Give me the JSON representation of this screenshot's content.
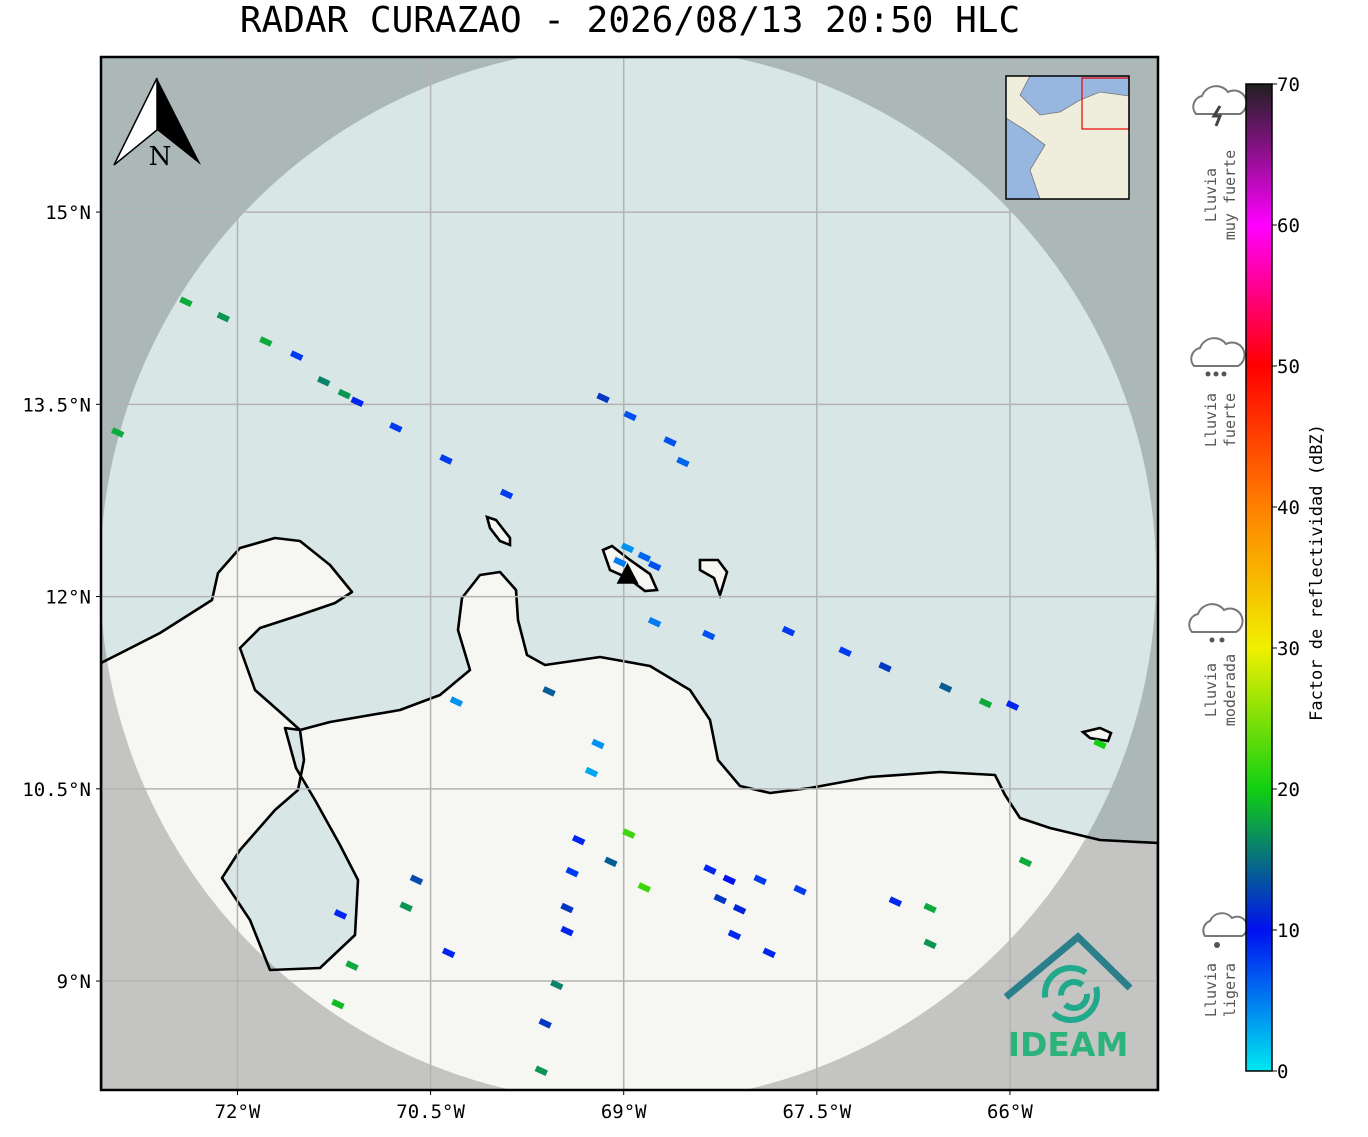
{
  "title": "RADAR CURAZAO - 2026/08/13 20:50 HLC",
  "map": {
    "xlim": [
      -73.06,
      -64.85
    ],
    "ylim": [
      8.15,
      16.21
    ],
    "xticks": [
      {
        "value": -72,
        "label": "72°W"
      },
      {
        "value": -70.5,
        "label": "70.5°W"
      },
      {
        "value": -69,
        "label": "69°W"
      },
      {
        "value": -67.5,
        "label": "67.5°W"
      },
      {
        "value": -66,
        "label": "66°W"
      }
    ],
    "yticks": [
      {
        "value": 9,
        "label": "9°N"
      },
      {
        "value": 10.5,
        "label": "10.5°N"
      },
      {
        "value": 12,
        "label": "12°N"
      },
      {
        "value": 13.5,
        "label": "13.5°N"
      },
      {
        "value": 15,
        "label": "15°N"
      }
    ],
    "grid": true,
    "radar_site": {
      "lon": -68.97,
      "lat": 12.17
    },
    "echoes": [
      {
        "lon": -72.4,
        "lat": 14.3,
        "dbz": 18
      },
      {
        "lon": -72.11,
        "lat": 14.18,
        "dbz": 17
      },
      {
        "lon": -71.78,
        "lat": 13.99,
        "dbz": 18
      },
      {
        "lon": -71.54,
        "lat": 13.88,
        "dbz": 8
      },
      {
        "lon": -71.33,
        "lat": 13.68,
        "dbz": 16
      },
      {
        "lon": -71.17,
        "lat": 13.58,
        "dbz": 17
      },
      {
        "lon": -71.07,
        "lat": 13.52,
        "dbz": 9
      },
      {
        "lon": -70.77,
        "lat": 13.32,
        "dbz": 8
      },
      {
        "lon": -70.38,
        "lat": 13.07,
        "dbz": 8
      },
      {
        "lon": -69.91,
        "lat": 12.8,
        "dbz": 8
      },
      {
        "lon": -72.93,
        "lat": 13.28,
        "dbz": 18
      },
      {
        "lon": -69.16,
        "lat": 13.55,
        "dbz": 12
      },
      {
        "lon": -68.95,
        "lat": 13.41,
        "dbz": 7
      },
      {
        "lon": -68.64,
        "lat": 13.21,
        "dbz": 7
      },
      {
        "lon": -68.54,
        "lat": 13.05,
        "dbz": 6
      },
      {
        "lon": -68.97,
        "lat": 12.38,
        "dbz": 4
      },
      {
        "lon": -68.84,
        "lat": 12.31,
        "dbz": 6
      },
      {
        "lon": -68.76,
        "lat": 12.24,
        "dbz": 7
      },
      {
        "lon": -69.03,
        "lat": 12.27,
        "dbz": 5
      },
      {
        "lon": -68.76,
        "lat": 11.8,
        "dbz": 5
      },
      {
        "lon": -68.34,
        "lat": 11.7,
        "dbz": 7
      },
      {
        "lon": -67.72,
        "lat": 11.73,
        "dbz": 8
      },
      {
        "lon": -67.28,
        "lat": 11.57,
        "dbz": 8
      },
      {
        "lon": -66.97,
        "lat": 11.45,
        "dbz": 12
      },
      {
        "lon": -66.5,
        "lat": 11.29,
        "dbz": 14
      },
      {
        "lon": -66.19,
        "lat": 11.17,
        "dbz": 18
      },
      {
        "lon": -65.98,
        "lat": 11.15,
        "dbz": 9
      },
      {
        "lon": -65.3,
        "lat": 10.85,
        "dbz": 20
      },
      {
        "lon": -69.58,
        "lat": 11.26,
        "dbz": 14
      },
      {
        "lon": -70.3,
        "lat": 11.18,
        "dbz": 4
      },
      {
        "lon": -69.2,
        "lat": 10.85,
        "dbz": 4
      },
      {
        "lon": -69.25,
        "lat": 10.63,
        "dbz": 3
      },
      {
        "lon": -70.61,
        "lat": 9.79,
        "dbz": 13
      },
      {
        "lon": -69.35,
        "lat": 10.1,
        "dbz": 9
      },
      {
        "lon": -69.1,
        "lat": 9.93,
        "dbz": 14
      },
      {
        "lon": -68.96,
        "lat": 10.15,
        "dbz": 22
      },
      {
        "lon": -68.84,
        "lat": 9.73,
        "dbz": 22
      },
      {
        "lon": -69.4,
        "lat": 9.85,
        "dbz": 8
      },
      {
        "lon": -69.44,
        "lat": 9.57,
        "dbz": 12
      },
      {
        "lon": -69.44,
        "lat": 9.39,
        "dbz": 9
      },
      {
        "lon": -69.52,
        "lat": 8.97,
        "dbz": 16
      },
      {
        "lon": -69.61,
        "lat": 8.67,
        "dbz": 12
      },
      {
        "lon": -69.64,
        "lat": 8.3,
        "dbz": 17
      },
      {
        "lon": -71.11,
        "lat": 9.12,
        "dbz": 18
      },
      {
        "lon": -71.22,
        "lat": 8.82,
        "dbz": 19
      },
      {
        "lon": -66.62,
        "lat": 9.57,
        "dbz": 18
      },
      {
        "lon": -66.62,
        "lat": 9.29,
        "dbz": 17
      },
      {
        "lon": -66.89,
        "lat": 9.62,
        "dbz": 9
      },
      {
        "lon": -65.88,
        "lat": 9.93,
        "dbz": 18
      },
      {
        "lon": -68.18,
        "lat": 9.79,
        "dbz": 10
      },
      {
        "lon": -68.33,
        "lat": 9.87,
        "dbz": 9
      },
      {
        "lon": -68.1,
        "lat": 9.56,
        "dbz": 11
      },
      {
        "lon": -68.14,
        "lat": 9.36,
        "dbz": 9
      },
      {
        "lon": -68.25,
        "lat": 9.64,
        "dbz": 12
      },
      {
        "lon": -67.94,
        "lat": 9.79,
        "dbz": 8
      },
      {
        "lon": -67.63,
        "lat": 9.71,
        "dbz": 8
      },
      {
        "lon": -67.87,
        "lat": 9.22,
        "dbz": 9
      },
      {
        "lon": -70.36,
        "lat": 9.22,
        "dbz": 9
      },
      {
        "lon": -71.2,
        "lat": 9.52,
        "dbz": 9
      },
      {
        "lon": -70.69,
        "lat": 9.58,
        "dbz": 17
      }
    ]
  },
  "colorbar": {
    "label": "Factor de reflectividad (dBZ)",
    "lim": [
      0,
      70
    ],
    "ticks": [
      0,
      10,
      20,
      30,
      40,
      50,
      60,
      70
    ],
    "colors": [
      "#00e8f0",
      "#0010f0",
      "#10d010",
      "#f0f000",
      "#ff8000",
      "#ff0000",
      "#ff00ff",
      "#202020"
    ]
  },
  "legend": [
    {
      "lines": [
        "Lluvia",
        "muy fuerte"
      ]
    },
    {
      "lines": [
        "Lluvia",
        "fuerte"
      ]
    },
    {
      "lines": [
        "Lluvia",
        "moderada"
      ]
    },
    {
      "lines": [
        "Lluvia",
        "ligera"
      ]
    }
  ],
  "north_label": "N",
  "logo_text": "IDEAM"
}
